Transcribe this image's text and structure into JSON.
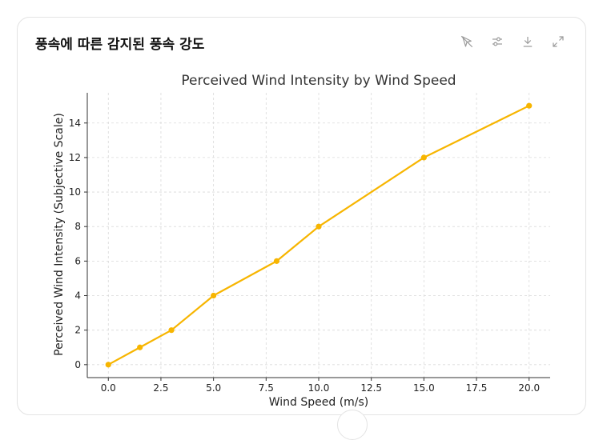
{
  "card": {
    "title": "풍속에 따른 감지된 풍속 강도"
  },
  "toolbar": {
    "icons": [
      "interactive-off-icon",
      "settings-sliders-icon",
      "download-icon",
      "expand-icon"
    ]
  },
  "colors": {
    "series": "#F7B500",
    "grid": "#d9d9d9",
    "axis": "#333333"
  },
  "chart_data": {
    "type": "line",
    "title": "Perceived Wind Intensity by Wind Speed",
    "xlabel": "Wind Speed (m/s)",
    "ylabel": "Perceived Wind Intensity (Subjective Scale)",
    "xlim": [
      -1,
      21
    ],
    "ylim": [
      -0.75,
      15.75
    ],
    "xticks": [
      0.0,
      2.5,
      5.0,
      7.5,
      10.0,
      12.5,
      15.0,
      17.5,
      20.0
    ],
    "xtick_labels": [
      "0.0",
      "2.5",
      "5.0",
      "7.5",
      "10.0",
      "12.5",
      "15.0",
      "17.5",
      "20.0"
    ],
    "yticks": [
      0,
      2,
      4,
      6,
      8,
      10,
      12,
      14
    ],
    "ytick_labels": [
      "0",
      "2",
      "4",
      "6",
      "8",
      "10",
      "12",
      "14"
    ],
    "grid": true,
    "series": [
      {
        "x": [
          0,
          1.5,
          3,
          5,
          8,
          10,
          15,
          20
        ],
        "y": [
          0,
          1,
          2,
          4,
          6,
          8,
          12,
          15
        ]
      }
    ]
  }
}
